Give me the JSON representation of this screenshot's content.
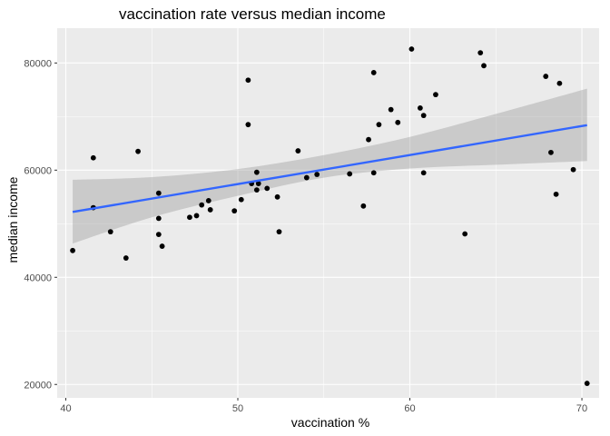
{
  "chart_data": {
    "type": "scatter",
    "title": "vaccination rate versus median income",
    "xlabel": "vaccination %",
    "ylabel": "median income",
    "xlim": [
      39.5,
      71.0
    ],
    "ylim": [
      17500,
      86500
    ],
    "x_ticks": [
      40,
      50,
      60,
      70
    ],
    "x_tick_labels": [
      "40",
      "50",
      "60",
      "70"
    ],
    "y_ticks": [
      20000,
      40000,
      60000,
      80000
    ],
    "y_tick_labels": [
      "20000",
      "40000",
      "60000",
      "80000"
    ],
    "grid": true,
    "colors": {
      "panel_background": "#ebebeb",
      "grid": "#ffffff",
      "points": "#000000",
      "regression_line": "#3366ff",
      "confidence_band": "#999999"
    },
    "points": [
      [
        40.4,
        45000
      ],
      [
        41.6,
        62300
      ],
      [
        41.6,
        53000
      ],
      [
        42.6,
        48500
      ],
      [
        43.5,
        43600
      ],
      [
        44.2,
        63500
      ],
      [
        45.4,
        55700
      ],
      [
        45.4,
        51000
      ],
      [
        45.4,
        48000
      ],
      [
        45.6,
        45800
      ],
      [
        47.2,
        51200
      ],
      [
        47.6,
        51500
      ],
      [
        47.9,
        53500
      ],
      [
        48.3,
        54300
      ],
      [
        48.4,
        52600
      ],
      [
        49.8,
        52400
      ],
      [
        50.2,
        54500
      ],
      [
        50.6,
        76800
      ],
      [
        50.6,
        68500
      ],
      [
        50.8,
        57500
      ],
      [
        51.1,
        59600
      ],
      [
        51.1,
        56300
      ],
      [
        51.2,
        57500
      ],
      [
        51.7,
        56600
      ],
      [
        52.3,
        55000
      ],
      [
        52.4,
        48500
      ],
      [
        53.5,
        63600
      ],
      [
        54.0,
        58600
      ],
      [
        54.6,
        59200
      ],
      [
        56.5,
        59300
      ],
      [
        57.3,
        53300
      ],
      [
        57.6,
        65700
      ],
      [
        57.9,
        78200
      ],
      [
        57.9,
        59500
      ],
      [
        58.2,
        68500
      ],
      [
        58.9,
        71300
      ],
      [
        59.3,
        68900
      ],
      [
        60.1,
        82600
      ],
      [
        60.6,
        71600
      ],
      [
        60.8,
        70200
      ],
      [
        60.8,
        59500
      ],
      [
        61.5,
        74100
      ],
      [
        63.2,
        48100
      ],
      [
        64.1,
        81900
      ],
      [
        64.3,
        79500
      ],
      [
        67.9,
        77500
      ],
      [
        68.2,
        63300
      ],
      [
        68.5,
        55500
      ],
      [
        68.7,
        76200
      ],
      [
        69.5,
        60100
      ],
      [
        70.3,
        20200
      ]
    ],
    "regression": {
      "x": [
        40.4,
        70.3
      ],
      "y": [
        52200,
        68400
      ]
    },
    "confidence_band": {
      "x": [
        40.4,
        45,
        50,
        55,
        60,
        65,
        70.3
      ],
      "lower": [
        46300,
        51200,
        55200,
        58600,
        60300,
        61000,
        61700
      ],
      "upper": [
        58200,
        58700,
        60200,
        62800,
        66200,
        70500,
        75200
      ]
    }
  }
}
